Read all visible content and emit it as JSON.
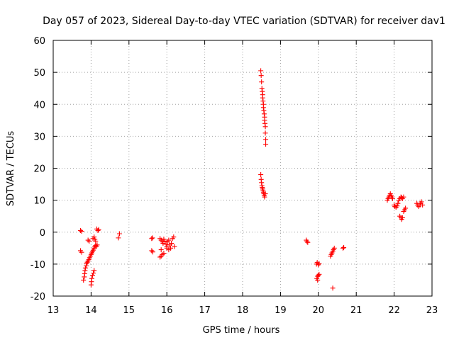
{
  "chart_data": {
    "type": "scatter",
    "title": "Day 057 of 2023, Sidereal Day-to-day VTEC variation (SDTVAR) for receiver dav1",
    "xlabel": "GPS time / hours",
    "ylabel": "SDTVAR / TECUs",
    "xlim": [
      13,
      23
    ],
    "ylim": [
      -20,
      60
    ],
    "grid": true,
    "x_ticks": [
      "13",
      "14",
      "15",
      "16",
      "17",
      "18",
      "19",
      "20",
      "21",
      "22",
      "23"
    ],
    "y_ticks": [
      "-20",
      "-10",
      "0",
      "10",
      "20",
      "30",
      "40",
      "50",
      "60"
    ],
    "marker": "plus",
    "color": "#ff0000",
    "series": [
      {
        "name": "SDTVAR",
        "points": [
          [
            13.72,
            0.5
          ],
          [
            13.75,
            0.3
          ],
          [
            13.72,
            -5.8
          ],
          [
            13.75,
            -6.3
          ],
          [
            13.8,
            -15.0
          ],
          [
            13.82,
            -14.0
          ],
          [
            13.83,
            -13.0
          ],
          [
            13.84,
            -12.0
          ],
          [
            13.85,
            -11.2
          ],
          [
            13.87,
            -10.5
          ],
          [
            13.88,
            -9.8
          ],
          [
            13.9,
            -9.4
          ],
          [
            13.92,
            -9.0
          ],
          [
            13.94,
            -8.6
          ],
          [
            13.96,
            -8.0
          ],
          [
            13.98,
            -7.5
          ],
          [
            14.0,
            -7.0
          ],
          [
            14.02,
            -6.5
          ],
          [
            14.04,
            -6.0
          ],
          [
            14.06,
            -5.6
          ],
          [
            14.08,
            -5.0
          ],
          [
            14.1,
            -4.5
          ],
          [
            14.12,
            -4.2
          ],
          [
            14.14,
            -4.5
          ],
          [
            14.16,
            -4.0
          ],
          [
            13.92,
            -2.5
          ],
          [
            13.95,
            -2.8
          ],
          [
            14.05,
            -2.0
          ],
          [
            14.08,
            -1.5
          ],
          [
            14.1,
            -2.2
          ],
          [
            14.12,
            -2.8
          ],
          [
            14.0,
            -16.5
          ],
          [
            14.01,
            -15.5
          ],
          [
            14.02,
            -14.5
          ],
          [
            14.04,
            -13.5
          ],
          [
            14.06,
            -12.8
          ],
          [
            14.08,
            -12.0
          ],
          [
            14.15,
            1.0
          ],
          [
            14.18,
            0.5
          ],
          [
            14.2,
            0.8
          ],
          [
            14.75,
            -0.5
          ],
          [
            14.72,
            -1.8
          ],
          [
            15.6,
            -2.0
          ],
          [
            15.62,
            -1.8
          ],
          [
            15.6,
            -5.8
          ],
          [
            15.63,
            -6.2
          ],
          [
            15.82,
            -7.8
          ],
          [
            15.85,
            -7.5
          ],
          [
            15.88,
            -7.0
          ],
          [
            15.92,
            -6.6
          ],
          [
            15.85,
            -5.5
          ],
          [
            15.82,
            -2.0
          ],
          [
            15.85,
            -2.5
          ],
          [
            15.88,
            -3.0
          ],
          [
            15.9,
            -3.5
          ],
          [
            15.92,
            -2.2
          ],
          [
            15.95,
            -2.8
          ],
          [
            15.98,
            -3.8
          ],
          [
            16.0,
            -4.5
          ],
          [
            16.02,
            -3.0
          ],
          [
            16.05,
            -2.5
          ],
          [
            16.08,
            -4.0
          ],
          [
            16.1,
            -5.0
          ],
          [
            16.12,
            -3.5
          ],
          [
            16.15,
            -2.0
          ],
          [
            16.18,
            -1.5
          ],
          [
            16.2,
            -4.5
          ],
          [
            16.0,
            -5.0
          ],
          [
            16.05,
            -5.5
          ],
          [
            18.48,
            50.5
          ],
          [
            18.49,
            49.0
          ],
          [
            18.5,
            47.0
          ],
          [
            18.51,
            45.0
          ],
          [
            18.52,
            44.0
          ],
          [
            18.53,
            43.0
          ],
          [
            18.53,
            42.0
          ],
          [
            18.54,
            41.0
          ],
          [
            18.55,
            40.0
          ],
          [
            18.55,
            39.0
          ],
          [
            18.56,
            38.0
          ],
          [
            18.57,
            37.0
          ],
          [
            18.58,
            36.0
          ],
          [
            18.58,
            35.0
          ],
          [
            18.59,
            34.0
          ],
          [
            18.6,
            33.0
          ],
          [
            18.6,
            31.0
          ],
          [
            18.61,
            29.0
          ],
          [
            18.61,
            27.5
          ],
          [
            18.48,
            18.0
          ],
          [
            18.49,
            16.5
          ],
          [
            18.5,
            15.5
          ],
          [
            18.51,
            14.5
          ],
          [
            18.52,
            14.0
          ],
          [
            18.53,
            13.5
          ],
          [
            18.54,
            13.0
          ],
          [
            18.55,
            12.5
          ],
          [
            18.56,
            12.0
          ],
          [
            18.57,
            11.5
          ],
          [
            18.58,
            11.0
          ],
          [
            18.6,
            12.0
          ],
          [
            19.68,
            -2.5
          ],
          [
            19.7,
            -3.0
          ],
          [
            19.72,
            -3.2
          ],
          [
            19.95,
            -10.0
          ],
          [
            19.97,
            -9.5
          ],
          [
            20.0,
            -10.2
          ],
          [
            20.02,
            -9.8
          ],
          [
            19.96,
            -14.5
          ],
          [
            19.98,
            -13.8
          ],
          [
            20.0,
            -13.5
          ],
          [
            20.02,
            -13.2
          ],
          [
            19.98,
            -15.0
          ],
          [
            20.32,
            -7.5
          ],
          [
            20.34,
            -7.0
          ],
          [
            20.36,
            -6.5
          ],
          [
            20.38,
            -6.0
          ],
          [
            20.4,
            -5.5
          ],
          [
            20.42,
            -5.0
          ],
          [
            20.38,
            -17.5
          ],
          [
            20.65,
            -5.0
          ],
          [
            20.67,
            -4.8
          ],
          [
            21.82,
            10.0
          ],
          [
            21.84,
            10.5
          ],
          [
            21.86,
            11.0
          ],
          [
            21.88,
            11.5
          ],
          [
            21.9,
            12.0
          ],
          [
            21.92,
            11.5
          ],
          [
            21.94,
            11.0
          ],
          [
            21.96,
            10.5
          ],
          [
            22.0,
            8.5
          ],
          [
            22.02,
            8.0
          ],
          [
            22.05,
            7.8
          ],
          [
            22.08,
            8.2
          ],
          [
            22.1,
            9.0
          ],
          [
            22.12,
            10.0
          ],
          [
            22.15,
            10.5
          ],
          [
            22.18,
            11.0
          ],
          [
            22.2,
            10.8
          ],
          [
            22.22,
            10.5
          ],
          [
            22.25,
            11.0
          ],
          [
            22.15,
            5.0
          ],
          [
            22.18,
            4.5
          ],
          [
            22.2,
            4.0
          ],
          [
            22.22,
            4.5
          ],
          [
            22.25,
            6.5
          ],
          [
            22.28,
            7.0
          ],
          [
            22.3,
            7.5
          ],
          [
            22.6,
            9.0
          ],
          [
            22.62,
            8.5
          ],
          [
            22.65,
            8.0
          ],
          [
            22.68,
            8.5
          ],
          [
            22.7,
            9.0
          ],
          [
            22.72,
            9.5
          ],
          [
            22.75,
            8.5
          ]
        ]
      }
    ]
  }
}
